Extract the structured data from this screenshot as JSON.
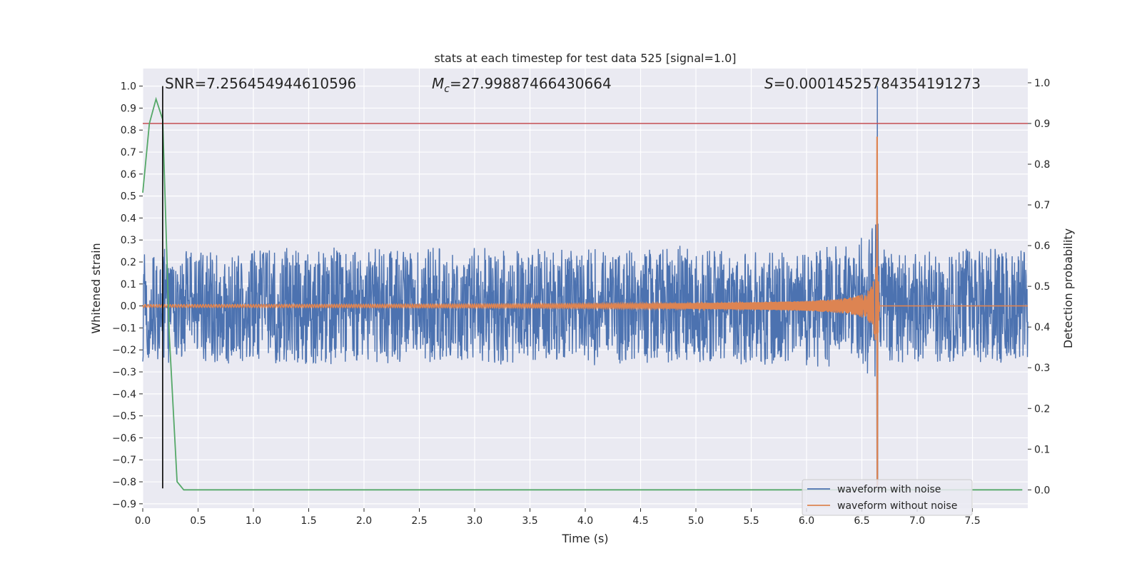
{
  "chart_data": {
    "type": "line",
    "title": "stats at each timestep for test data 525 [signal=1.0]",
    "xlabel": "Time (s)",
    "ylabel": "Whitened strain",
    "y2label": "Detection probability",
    "xlim": [
      0.0,
      8.0
    ],
    "ylim": [
      -0.92,
      1.08
    ],
    "y2lim": [
      -0.045,
      1.035
    ],
    "grid": true,
    "legend_position": "lower-right",
    "x_ticks": [
      "0.0",
      "0.5",
      "1.0",
      "1.5",
      "2.0",
      "2.5",
      "3.0",
      "3.5",
      "4.0",
      "4.5",
      "5.0",
      "5.5",
      "6.0",
      "6.5",
      "7.0",
      "7.5"
    ],
    "y_ticks": [
      "1.0",
      "0.9",
      "0.8",
      "0.7",
      "0.6",
      "0.5",
      "0.4",
      "0.3",
      "0.2",
      "0.1",
      "0.0",
      "−0.1",
      "−0.2",
      "−0.3",
      "−0.4",
      "−0.5",
      "−0.6",
      "−0.7",
      "−0.8",
      "−0.9"
    ],
    "y2_ticks": [
      "1.0",
      "0.9",
      "0.8",
      "0.7",
      "0.6",
      "0.5",
      "0.4",
      "0.3",
      "0.2",
      "0.1",
      "0.0"
    ],
    "annotations": {
      "snr": "SNR=7.256454944610596",
      "mc_prefix": "M",
      "mc_sub": "c",
      "mc_value": "=27.99887466430664",
      "s_prefix": "S",
      "s_value": "=0.00014525784354191273"
    },
    "series": [
      {
        "name": "waveform with noise",
        "color": "#4c72b0",
        "axis": "left",
        "noise_amplitude": 0.26,
        "x_range": [
          0.0,
          8.0
        ],
        "peak_x": 6.64,
        "peak_range": [
          -0.82,
          1.0
        ]
      },
      {
        "name": "waveform without noise",
        "color": "#dd8452",
        "axis": "left",
        "x_range": [
          0.0,
          8.0
        ],
        "merger_x": 6.64,
        "peak_range": [
          -0.82,
          0.77
        ]
      },
      {
        "name": "",
        "color": "#55a868",
        "axis": "right",
        "x": [
          0.0,
          0.06,
          0.12,
          0.18,
          0.24,
          0.31,
          0.37,
          0.5,
          1.0,
          2.0,
          3.0,
          4.0,
          5.0,
          6.0,
          7.0,
          7.95
        ],
        "y": [
          0.73,
          0.9,
          0.96,
          0.91,
          0.38,
          0.02,
          0.0,
          0.0,
          0.0,
          0.0,
          0.0,
          0.0,
          0.0,
          0.0,
          0.0,
          0.0
        ]
      }
    ],
    "threshold": {
      "color": "#c44e52",
      "y2": 0.9
    },
    "marker_line": {
      "color": "#000000",
      "x": 0.18,
      "y_range": [
        -0.83,
        1.0
      ]
    },
    "legend": [
      "waveform with noise",
      "waveform without noise"
    ]
  }
}
